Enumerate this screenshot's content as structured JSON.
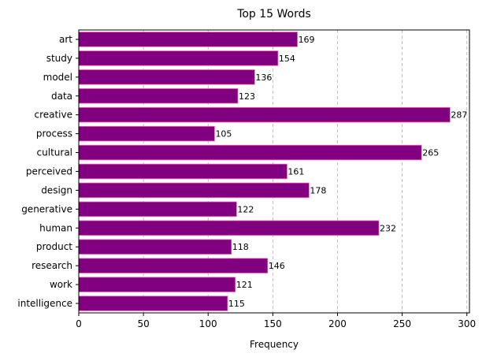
{
  "chart_data": {
    "type": "bar",
    "orientation": "horizontal",
    "title": "Top 15 Words",
    "xlabel": "Frequency",
    "ylabel": "",
    "categories": [
      "art",
      "study",
      "model",
      "data",
      "creative",
      "process",
      "cultural",
      "perceived",
      "design",
      "generative",
      "human",
      "product",
      "research",
      "work",
      "intelligence"
    ],
    "values": [
      169,
      154,
      136,
      123,
      287,
      105,
      265,
      161,
      178,
      122,
      232,
      118,
      146,
      121,
      115
    ],
    "xlim": [
      0,
      302
    ],
    "xticks": [
      0,
      50,
      100,
      150,
      200,
      250,
      300
    ],
    "grid": "x-dashed",
    "colors": {
      "bar": "#800080",
      "bar_edge": "#ff69b4"
    }
  }
}
